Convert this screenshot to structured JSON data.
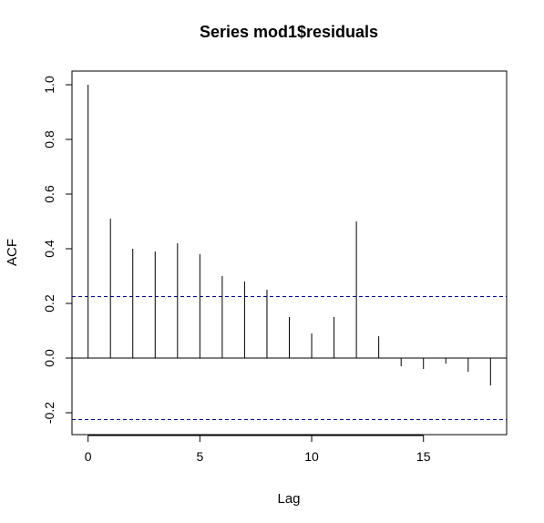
{
  "chart_data": {
    "type": "bar",
    "title": "Series  mod1$residuals",
    "xlabel": "Lag",
    "ylabel": "ACF",
    "xlim": [
      -0.72,
      18.72
    ],
    "ylim": [
      -0.28,
      1.05
    ],
    "xticks": [
      0,
      5,
      10,
      15
    ],
    "xtick_labels": [
      "0",
      "5",
      "10",
      "15"
    ],
    "yticks": [
      -0.2,
      0.0,
      0.2,
      0.4,
      0.6,
      0.8,
      1.0
    ],
    "ytick_labels": [
      "-0.2",
      "0.0",
      "0.2",
      "0.4",
      "0.6",
      "0.8",
      "1.0"
    ],
    "lags": [
      0,
      1,
      2,
      3,
      4,
      5,
      6,
      7,
      8,
      9,
      10,
      11,
      12,
      13,
      14,
      15,
      16,
      17,
      18
    ],
    "acf": [
      1.0,
      0.51,
      0.4,
      0.39,
      0.42,
      0.38,
      0.3,
      0.28,
      0.25,
      0.15,
      0.09,
      0.15,
      0.5,
      0.08,
      -0.03,
      -0.04,
      -0.02,
      -0.05,
      -0.1
    ],
    "confidence_bound": 0.225,
    "zero_line": 0,
    "grid": false,
    "colors": {
      "spike": "#000000",
      "confidence": "#00008b",
      "axis": "#000000"
    }
  }
}
